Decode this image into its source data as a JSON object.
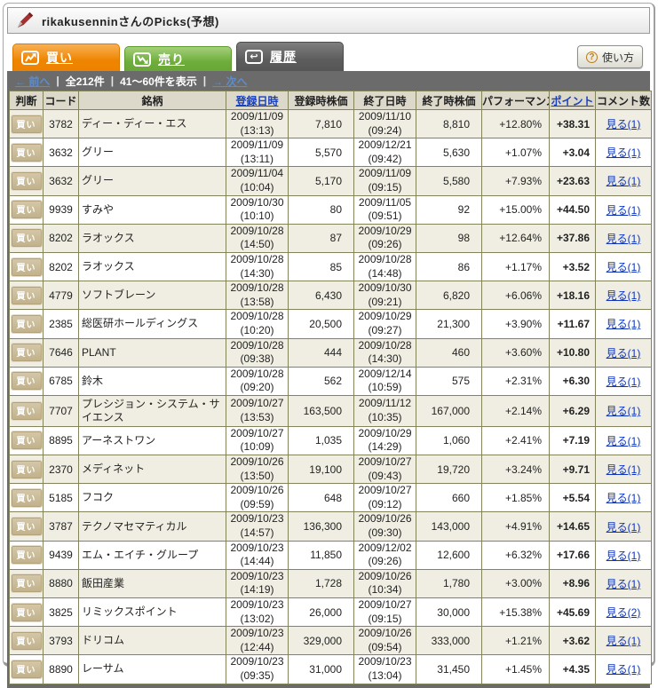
{
  "header": {
    "title": "rikakusenninさんのPicks(予想)",
    "icon": "pen-icon"
  },
  "tabs": [
    {
      "id": "buy",
      "label": "買い",
      "icon": "zigzag-up-icon",
      "color": "#ee8500"
    },
    {
      "id": "sell",
      "label": "売り",
      "icon": "zigzag-down-icon",
      "color": "#6fae3c"
    },
    {
      "id": "history",
      "label": "履歴",
      "icon": "return-arrow-icon",
      "color": "#5d5d5d"
    }
  ],
  "help_button": {
    "label": "使い方",
    "icon": "question-icon"
  },
  "pagination": {
    "prev": "← 前へ",
    "total": "全212件",
    "range": "41〜60件を表示",
    "next": "→ 次へ",
    "separator": "|"
  },
  "table": {
    "headers": [
      {
        "label": "判断",
        "link": false
      },
      {
        "label": "コード",
        "link": false
      },
      {
        "label": "銘柄",
        "link": false
      },
      {
        "label": "登録日時",
        "link": true
      },
      {
        "label": "登録時株価",
        "link": false
      },
      {
        "label": "終了日時",
        "link": false
      },
      {
        "label": "終了時株価",
        "link": false
      },
      {
        "label": "パフォーマンス",
        "link": false
      },
      {
        "label": "ポイント",
        "link": true
      },
      {
        "label": "コメント数",
        "link": false
      }
    ],
    "rows": [
      {
        "judgment": "買い",
        "code": "3782",
        "name": "ディー・ディー・エス",
        "reg_date": "2009/11/09",
        "reg_time": "(13:13)",
        "reg_price": "7,810",
        "end_date": "2009/11/10",
        "end_time": "(09:24)",
        "end_price": "8,810",
        "performance": "+12.80%",
        "points": "+38.31",
        "comments": "見る(1)"
      },
      {
        "judgment": "買い",
        "code": "3632",
        "name": "グリー",
        "reg_date": "2009/11/09",
        "reg_time": "(13:11)",
        "reg_price": "5,570",
        "end_date": "2009/12/21",
        "end_time": "(09:42)",
        "end_price": "5,630",
        "performance": "+1.07%",
        "points": "+3.04",
        "comments": "見る(1)"
      },
      {
        "judgment": "買い",
        "code": "3632",
        "name": "グリー",
        "reg_date": "2009/11/04",
        "reg_time": "(10:04)",
        "reg_price": "5,170",
        "end_date": "2009/11/09",
        "end_time": "(09:15)",
        "end_price": "5,580",
        "performance": "+7.93%",
        "points": "+23.63",
        "comments": "見る(1)"
      },
      {
        "judgment": "買い",
        "code": "9939",
        "name": "すみや",
        "reg_date": "2009/10/30",
        "reg_time": "(10:10)",
        "reg_price": "80",
        "end_date": "2009/11/05",
        "end_time": "(09:51)",
        "end_price": "92",
        "performance": "+15.00%",
        "points": "+44.50",
        "comments": "見る(1)"
      },
      {
        "judgment": "買い",
        "code": "8202",
        "name": "ラオックス",
        "reg_date": "2009/10/28",
        "reg_time": "(14:50)",
        "reg_price": "87",
        "end_date": "2009/10/29",
        "end_time": "(09:26)",
        "end_price": "98",
        "performance": "+12.64%",
        "points": "+37.86",
        "comments": "見る(1)"
      },
      {
        "judgment": "買い",
        "code": "8202",
        "name": "ラオックス",
        "reg_date": "2009/10/28",
        "reg_time": "(14:30)",
        "reg_price": "85",
        "end_date": "2009/10/28",
        "end_time": "(14:48)",
        "end_price": "86",
        "performance": "+1.17%",
        "points": "+3.52",
        "comments": "見る(1)"
      },
      {
        "judgment": "買い",
        "code": "4779",
        "name": "ソフトブレーン",
        "reg_date": "2009/10/28",
        "reg_time": "(13:58)",
        "reg_price": "6,430",
        "end_date": "2009/10/30",
        "end_time": "(09:21)",
        "end_price": "6,820",
        "performance": "+6.06%",
        "points": "+18.16",
        "comments": "見る(1)"
      },
      {
        "judgment": "買い",
        "code": "2385",
        "name": "総医研ホールディングス",
        "reg_date": "2009/10/28",
        "reg_time": "(10:20)",
        "reg_price": "20,500",
        "end_date": "2009/10/29",
        "end_time": "(09:27)",
        "end_price": "21,300",
        "performance": "+3.90%",
        "points": "+11.67",
        "comments": "見る(1)"
      },
      {
        "judgment": "買い",
        "code": "7646",
        "name": "PLANT",
        "reg_date": "2009/10/28",
        "reg_time": "(09:38)",
        "reg_price": "444",
        "end_date": "2009/10/28",
        "end_time": "(14:30)",
        "end_price": "460",
        "performance": "+3.60%",
        "points": "+10.80",
        "comments": "見る(1)"
      },
      {
        "judgment": "買い",
        "code": "6785",
        "name": "鈴木",
        "reg_date": "2009/10/28",
        "reg_time": "(09:20)",
        "reg_price": "562",
        "end_date": "2009/12/14",
        "end_time": "(10:59)",
        "end_price": "575",
        "performance": "+2.31%",
        "points": "+6.30",
        "comments": "見る(1)"
      },
      {
        "judgment": "買い",
        "code": "7707",
        "name": "プレシジョン・システム・サイエンス",
        "reg_date": "2009/10/27",
        "reg_time": "(13:53)",
        "reg_price": "163,500",
        "end_date": "2009/11/12",
        "end_time": "(10:35)",
        "end_price": "167,000",
        "performance": "+2.14%",
        "points": "+6.29",
        "comments": "見る(1)"
      },
      {
        "judgment": "買い",
        "code": "8895",
        "name": "アーネストワン",
        "reg_date": "2009/10/27",
        "reg_time": "(10:09)",
        "reg_price": "1,035",
        "end_date": "2009/10/29",
        "end_time": "(14:29)",
        "end_price": "1,060",
        "performance": "+2.41%",
        "points": "+7.19",
        "comments": "見る(1)"
      },
      {
        "judgment": "買い",
        "code": "2370",
        "name": "メディネット",
        "reg_date": "2009/10/26",
        "reg_time": "(13:50)",
        "reg_price": "19,100",
        "end_date": "2009/10/27",
        "end_time": "(09:43)",
        "end_price": "19,720",
        "performance": "+3.24%",
        "points": "+9.71",
        "comments": "見る(1)"
      },
      {
        "judgment": "買い",
        "code": "5185",
        "name": "フコク",
        "reg_date": "2009/10/26",
        "reg_time": "(09:59)",
        "reg_price": "648",
        "end_date": "2009/10/27",
        "end_time": "(09:12)",
        "end_price": "660",
        "performance": "+1.85%",
        "points": "+5.54",
        "comments": "見る(1)"
      },
      {
        "judgment": "買い",
        "code": "3787",
        "name": "テクノマセマティカル",
        "reg_date": "2009/10/23",
        "reg_time": "(14:57)",
        "reg_price": "136,300",
        "end_date": "2009/10/26",
        "end_time": "(09:30)",
        "end_price": "143,000",
        "performance": "+4.91%",
        "points": "+14.65",
        "comments": "見る(1)"
      },
      {
        "judgment": "買い",
        "code": "9439",
        "name": "エム・エイチ・グループ",
        "reg_date": "2009/10/23",
        "reg_time": "(14:44)",
        "reg_price": "11,850",
        "end_date": "2009/12/02",
        "end_time": "(09:26)",
        "end_price": "12,600",
        "performance": "+6.32%",
        "points": "+17.66",
        "comments": "見る(1)"
      },
      {
        "judgment": "買い",
        "code": "8880",
        "name": "飯田産業",
        "reg_date": "2009/10/23",
        "reg_time": "(14:19)",
        "reg_price": "1,728",
        "end_date": "2009/10/26",
        "end_time": "(10:34)",
        "end_price": "1,780",
        "performance": "+3.00%",
        "points": "+8.96",
        "comments": "見る(1)"
      },
      {
        "judgment": "買い",
        "code": "3825",
        "name": "リミックスポイント",
        "reg_date": "2009/10/23",
        "reg_time": "(13:02)",
        "reg_price": "26,000",
        "end_date": "2009/10/27",
        "end_time": "(09:15)",
        "end_price": "30,000",
        "performance": "+15.38%",
        "points": "+45.69",
        "comments": "見る(2)"
      },
      {
        "judgment": "買い",
        "code": "3793",
        "name": "ドリコム",
        "reg_date": "2009/10/23",
        "reg_time": "(12:44)",
        "reg_price": "329,000",
        "end_date": "2009/10/26",
        "end_time": "(09:54)",
        "end_price": "333,000",
        "performance": "+1.21%",
        "points": "+3.62",
        "comments": "見る(1)"
      },
      {
        "judgment": "買い",
        "code": "8890",
        "name": "レーサム",
        "reg_date": "2009/10/23",
        "reg_time": "(09:35)",
        "reg_price": "31,000",
        "end_date": "2009/10/23",
        "end_time": "(13:04)",
        "end_price": "31,450",
        "performance": "+1.45%",
        "points": "+4.35",
        "comments": "見る(1)"
      }
    ]
  },
  "colors": {
    "accent_buy_tab": "#ee8500",
    "accent_sell_tab": "#6fae3c",
    "accent_history_tab": "#5d5d5d",
    "price_up_red": "#d60000",
    "link_blue": "#0d35c0",
    "pagination_link_blue": "#5d8ccb",
    "row_alt_beige": "#f0eee2",
    "grid_olive": "#83835c",
    "panel_gray": "#6b6b6b",
    "badge_tan": "#c2b28c"
  }
}
